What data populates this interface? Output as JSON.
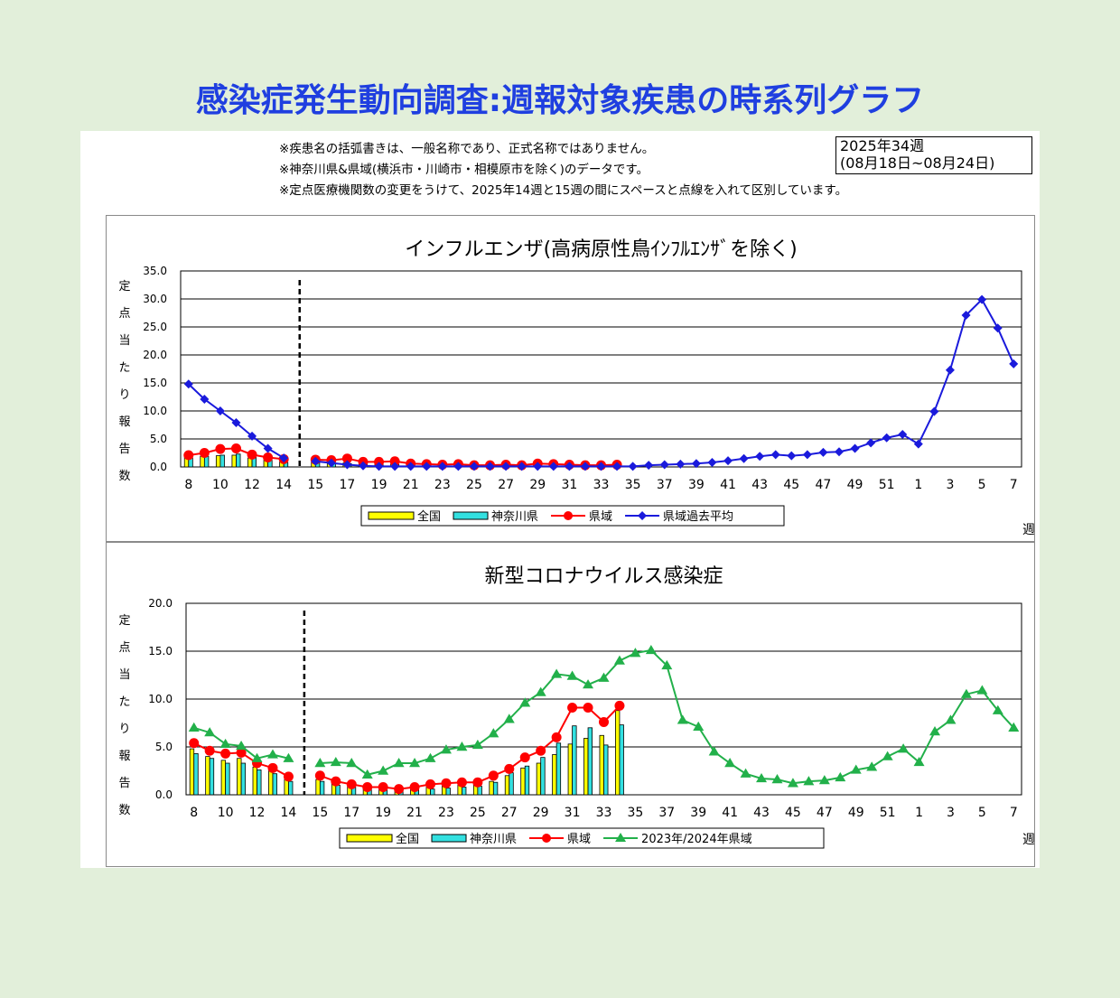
{
  "page": {
    "title": "感染症発生動向調査:週報対象疾患の時系列グラフ",
    "notes": [
      "※疾患名の括弧書きは、一般名称であり、正式名称ではありません。",
      "※神奈川県&県域(横浜市・川崎市・相模原市を除く)のデータです。",
      "※定点医療機関数の変更をうけて、2025年14週と15週の間にスペースと点線を入れて区別しています。"
    ],
    "week_box": [
      "2025年34週",
      "(08月18日~08月24日)"
    ]
  },
  "colors": {
    "zenkoku": "#ffff00",
    "kanagawa": "#33e0e0",
    "kenki": "#ff0000",
    "kenki_avg": "#1a1adc",
    "prev_season": "#22b04a"
  },
  "chart_data": [
    {
      "type": "bar",
      "title": "インフルエンザ(高病原性鳥ｲﾝﾌﾙｴﾝｻﾞを除く)",
      "ylabel": "定点当たり報告数",
      "xlabel": "週",
      "ylim": [
        0,
        35
      ],
      "yticks": [
        "0.0",
        "5.0",
        "10.0",
        "15.0",
        "20.0",
        "25.0",
        "30.0",
        "35.0"
      ],
      "grid": true,
      "legend": [
        "全国",
        "神奈川県",
        "県域",
        "県域過去平均"
      ],
      "legend_position": "bottom",
      "x_ticks_left": [
        "8",
        "10",
        "12",
        "14"
      ],
      "x_ticks_right": [
        "15",
        "17",
        "19",
        "21",
        "23",
        "25",
        "27",
        "29",
        "31",
        "33",
        "35",
        "37",
        "39",
        "41",
        "43",
        "45",
        "47",
        "49",
        "51",
        "1",
        "3",
        "5",
        "7"
      ],
      "weeks_left": [
        8,
        9,
        10,
        11,
        12,
        13,
        14
      ],
      "weeks_right": [
        15,
        16,
        17,
        18,
        19,
        20,
        21,
        22,
        23,
        24,
        25,
        26,
        27,
        28,
        29,
        30,
        31,
        32,
        33,
        34,
        35,
        36,
        37,
        38,
        39,
        40,
        41,
        42,
        43,
        44,
        45,
        46,
        47,
        48,
        49,
        50,
        51,
        52,
        1,
        2,
        3,
        4,
        5,
        6,
        7
      ],
      "series": [
        {
          "name": "全国",
          "kind": "bar",
          "left": [
            1.8,
            1.9,
            2.0,
            2.1,
            1.6,
            1.2,
            0.9
          ],
          "right": [
            0.9,
            0.8,
            0.7,
            0.6,
            0.5,
            0.5,
            0.4,
            0.4,
            0.3,
            0.3,
            0.3,
            0.2,
            0.2,
            0.2,
            0.2,
            0.2,
            0.2,
            0.2,
            0.2,
            0.2
          ]
        },
        {
          "name": "神奈川県",
          "kind": "bar",
          "left": [
            1.6,
            1.9,
            2.1,
            2.3,
            1.7,
            1.2,
            0.8
          ],
          "right": [
            0.8,
            0.7,
            0.6,
            0.5,
            0.4,
            0.4,
            0.3,
            0.3,
            0.3,
            0.2,
            0.2,
            0.2,
            0.2,
            0.2,
            0.2,
            0.2,
            0.2,
            0.2,
            0.2,
            0.1
          ]
        },
        {
          "name": "県域",
          "kind": "line",
          "left": [
            2.1,
            2.5,
            3.2,
            3.3,
            2.2,
            1.7,
            1.4
          ],
          "right": [
            1.3,
            1.2,
            1.5,
            0.9,
            0.9,
            1.0,
            0.6,
            0.5,
            0.4,
            0.5,
            0.3,
            0.3,
            0.4,
            0.3,
            0.6,
            0.5,
            0.4,
            0.3,
            0.3,
            0.4
          ]
        },
        {
          "name": "県域過去平均",
          "kind": "line",
          "left": [
            14.8,
            12.1,
            10.0,
            7.9,
            5.5,
            3.3,
            1.6
          ],
          "right": [
            1.0,
            0.7,
            0.4,
            0.2,
            0.1,
            0.1,
            0.1,
            0.1,
            0.1,
            0.1,
            0.1,
            0.1,
            0.1,
            0.1,
            0.1,
            0.1,
            0.1,
            0.1,
            0.1,
            0.1,
            0.1,
            0.3,
            0.4,
            0.5,
            0.6,
            0.8,
            1.1,
            1.5,
            1.9,
            2.2,
            2.0,
            2.2,
            2.6,
            2.7,
            3.3,
            4.3,
            5.2,
            5.8,
            4.1,
            9.9,
            17.3,
            27.1,
            29.9,
            24.8,
            18.4
          ]
        }
      ]
    },
    {
      "type": "bar",
      "title": "新型コロナウイルス感染症",
      "ylabel": "定点当たり報告数",
      "xlabel": "週",
      "ylim": [
        0,
        20
      ],
      "yticks": [
        "0.0",
        "5.0",
        "10.0",
        "15.0",
        "20.0"
      ],
      "grid": true,
      "legend": [
        "全国",
        "神奈川県",
        "県域",
        "2023年/2024年県域"
      ],
      "legend_position": "bottom",
      "x_ticks_left": [
        "8",
        "10",
        "12",
        "14"
      ],
      "x_ticks_right": [
        "15",
        "17",
        "19",
        "21",
        "23",
        "25",
        "27",
        "29",
        "31",
        "33",
        "35",
        "37",
        "39",
        "41",
        "43",
        "45",
        "47",
        "49",
        "51",
        "1",
        "3",
        "5",
        "7"
      ],
      "weeks_left": [
        8,
        9,
        10,
        11,
        12,
        13,
        14
      ],
      "weeks_right": [
        15,
        16,
        17,
        18,
        19,
        20,
        21,
        22,
        23,
        24,
        25,
        26,
        27,
        28,
        29,
        30,
        31,
        32,
        33,
        34,
        35,
        36,
        37,
        38,
        39,
        40,
        41,
        42,
        43,
        44,
        45,
        46,
        47,
        48,
        49,
        50,
        51,
        52,
        1,
        2,
        3,
        4,
        5,
        6,
        7
      ],
      "series": [
        {
          "name": "全国",
          "kind": "bar",
          "left": [
            4.8,
            4.0,
            3.6,
            3.8,
            2.9,
            2.5,
            1.6
          ],
          "right": [
            1.6,
            1.2,
            1.0,
            0.8,
            0.7,
            0.6,
            0.7,
            0.8,
            0.9,
            1.0,
            1.1,
            1.4,
            2.0,
            2.8,
            3.3,
            4.2,
            5.3,
            5.9,
            6.2,
            8.8
          ]
        },
        {
          "name": "神奈川県",
          "kind": "bar",
          "left": [
            4.3,
            3.8,
            3.3,
            3.3,
            2.6,
            2.2,
            1.4
          ],
          "right": [
            1.4,
            1.0,
            0.8,
            0.6,
            0.5,
            0.5,
            0.5,
            0.6,
            0.7,
            0.8,
            0.9,
            1.3,
            2.3,
            3.0,
            3.9,
            5.4,
            7.2,
            7.0,
            5.2,
            7.3
          ]
        },
        {
          "name": "県域",
          "kind": "line",
          "left": [
            5.4,
            4.6,
            4.3,
            4.4,
            3.3,
            2.8,
            1.9
          ],
          "right": [
            2.0,
            1.4,
            1.1,
            0.8,
            0.8,
            0.6,
            0.8,
            1.1,
            1.2,
            1.3,
            1.3,
            2.0,
            2.7,
            3.9,
            4.6,
            6.0,
            9.1,
            9.1,
            7.6,
            9.3
          ]
        },
        {
          "name": "2023年/2024年県域",
          "kind": "line",
          "left": [
            7.0,
            6.5,
            5.3,
            5.1,
            3.8,
            4.2,
            3.8
          ],
          "right": [
            3.3,
            3.4,
            3.3,
            2.1,
            2.5,
            3.3,
            3.3,
            3.8,
            4.7,
            5.0,
            5.2,
            6.4,
            7.9,
            9.6,
            10.7,
            12.6,
            12.4,
            11.5,
            12.2,
            14.0,
            14.8,
            15.1,
            13.5,
            7.8,
            7.1,
            4.5,
            3.3,
            2.2,
            1.7,
            1.6,
            1.2,
            1.4,
            1.5,
            1.8,
            2.6,
            2.9,
            4.0,
            4.8,
            3.4,
            6.6,
            7.8,
            10.5,
            10.9,
            8.8,
            7.0
          ]
        }
      ]
    }
  ]
}
